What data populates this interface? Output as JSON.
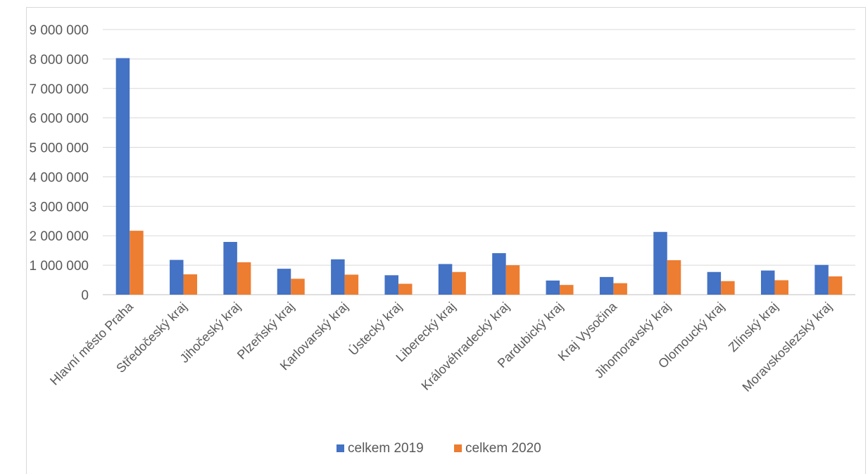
{
  "chart_data": {
    "type": "bar",
    "title": "",
    "xlabel": "",
    "ylabel": "",
    "ylim": [
      0,
      9000000
    ],
    "yticks": [
      0,
      1000000,
      2000000,
      3000000,
      4000000,
      5000000,
      6000000,
      7000000,
      8000000,
      9000000
    ],
    "ytick_labels": [
      "0",
      "1 000 000",
      "2 000 000",
      "3 000 000",
      "4 000 000",
      "5 000 000",
      "6 000 000",
      "7 000 000",
      "8 000 000",
      "9 000 000"
    ],
    "grid": true,
    "legend_position": "bottom",
    "categories": [
      "Hlavní město Praha",
      "Středočeský kraj",
      "Jihočeský kraj",
      "Plzeňský kraj",
      "Karlovarský kraj",
      "Ústecký kraj",
      "Liberecký kraj",
      "Královéhradecký kraj",
      "Pardubický kraj",
      "Kraj Vysočina",
      "Jihomoravský kraj",
      "Olomoucký kraj",
      "Zlínský kraj",
      "Moravskoslezský kraj"
    ],
    "series": [
      {
        "name": "celkem 2019",
        "color": "#4472c4",
        "values": [
          8030000,
          1180000,
          1790000,
          880000,
          1200000,
          660000,
          1040000,
          1410000,
          480000,
          600000,
          2130000,
          770000,
          820000,
          1010000
        ]
      },
      {
        "name": "celkem 2020",
        "color": "#ed7d31",
        "values": [
          2170000,
          690000,
          1100000,
          540000,
          680000,
          370000,
          770000,
          1000000,
          330000,
          390000,
          1170000,
          460000,
          490000,
          620000
        ]
      }
    ]
  }
}
